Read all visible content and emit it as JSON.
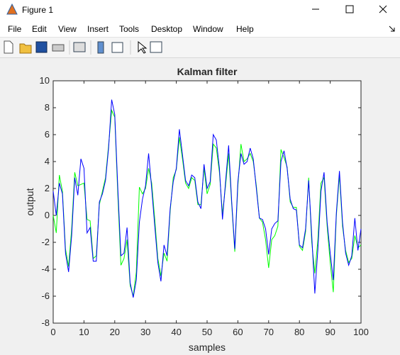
{
  "window": {
    "title": "Figure 1",
    "menu": [
      "File",
      "Edit",
      "View",
      "Insert",
      "Tools",
      "Desktop",
      "Window",
      "Help"
    ]
  },
  "chart_data": {
    "type": "line",
    "title": "Kalman filter",
    "xlabel": "samples",
    "ylabel": "output",
    "x": [
      0,
      1,
      2,
      3,
      4,
      5,
      6,
      7,
      8,
      9,
      10,
      11,
      12,
      13,
      14,
      15,
      16,
      17,
      18,
      19,
      20,
      21,
      22,
      23,
      24,
      25,
      26,
      27,
      28,
      29,
      30,
      31,
      32,
      33,
      34,
      35,
      36,
      37,
      38,
      39,
      40,
      41,
      42,
      43,
      44,
      45,
      46,
      47,
      48,
      49,
      50,
      51,
      52,
      53,
      54,
      55,
      56,
      57,
      58,
      59,
      60,
      61,
      62,
      63,
      64,
      65,
      66,
      67,
      68,
      69,
      70,
      71,
      72,
      73,
      74,
      75,
      76,
      77,
      78,
      79,
      80,
      81,
      82,
      83,
      84,
      85,
      86,
      87,
      88,
      89,
      90,
      91,
      92,
      93,
      94,
      95,
      96,
      97,
      98,
      99,
      100
    ],
    "xlim": [
      0,
      100
    ],
    "ylim": [
      -8,
      10
    ],
    "xticks": [
      0,
      10,
      20,
      30,
      40,
      50,
      60,
      70,
      80,
      90,
      100
    ],
    "yticks": [
      -8,
      -6,
      -4,
      -2,
      0,
      2,
      4,
      6,
      8,
      10
    ],
    "series": [
      {
        "color": "#00ff00",
        "values": [
          0.0,
          -1.3,
          3.0,
          1.8,
          -2.5,
          -3.8,
          -1.0,
          3.2,
          2.2,
          2.3,
          2.4,
          -0.3,
          -0.4,
          -3.2,
          -3.0,
          0.8,
          1.8,
          2.8,
          5.2,
          7.8,
          7.3,
          1.5,
          -3.7,
          -3.2,
          -1.8,
          -5.2,
          -6.0,
          -4.2,
          2.1,
          1.6,
          2.0,
          3.5,
          2.4,
          -0.3,
          -3.2,
          -4.5,
          -2.8,
          -3.4,
          0.3,
          2.8,
          3.4,
          5.8,
          4.2,
          2.4,
          2.0,
          2.8,
          2.6,
          0.8,
          0.8,
          3.5,
          1.6,
          2.3,
          5.3,
          5.0,
          3.2,
          0.1,
          2.2,
          4.6,
          0.8,
          -2.7,
          2.2,
          5.3,
          4.0,
          4.2,
          4.6,
          4.0,
          2.2,
          -0.2,
          -0.5,
          -1.8,
          -3.9,
          -1.8,
          -1.5,
          -0.8,
          4.9,
          4.3,
          3.6,
          1.0,
          0.6,
          0.6,
          -2.3,
          -2.6,
          -1.2,
          2.8,
          -2.0,
          -4.3,
          -1.8,
          2.4,
          2.8,
          -0.8,
          -3.5,
          -5.7,
          0.0,
          3.0,
          -0.8,
          -2.6,
          -3.5,
          -3.2,
          -1.5,
          -2.4,
          -2.2
        ]
      },
      {
        "color": "#0000ff",
        "values": [
          1.8,
          0.0,
          2.4,
          1.6,
          -2.8,
          -4.2,
          -1.5,
          2.8,
          1.5,
          4.2,
          3.5,
          -1.3,
          -0.9,
          -3.4,
          -3.4,
          1.0,
          1.6,
          2.6,
          5.0,
          8.6,
          7.5,
          2.0,
          -3.0,
          -2.8,
          -0.9,
          -5.0,
          -6.1,
          -4.8,
          -0.5,
          1.2,
          2.2,
          4.6,
          2.0,
          -0.8,
          -3.5,
          -4.9,
          -2.2,
          -3.0,
          0.5,
          2.5,
          3.5,
          6.4,
          4.5,
          2.6,
          2.2,
          3.0,
          2.8,
          1.0,
          0.5,
          3.8,
          2.0,
          2.5,
          6.0,
          5.6,
          3.5,
          -0.3,
          2.5,
          5.2,
          1.0,
          -2.5,
          2.5,
          4.6,
          3.8,
          4.0,
          5.0,
          4.2,
          2.0,
          -0.2,
          -0.3,
          -1.0,
          -2.9,
          -1.0,
          -0.6,
          -0.4,
          4.0,
          4.8,
          3.5,
          1.2,
          0.5,
          0.4,
          -2.2,
          -2.4,
          -1.0,
          2.6,
          -1.5,
          -5.8,
          -2.5,
          1.8,
          3.2,
          -0.5,
          -2.8,
          -4.8,
          0.2,
          3.3,
          -0.5,
          -2.8,
          -3.7,
          -3.0,
          -0.2,
          -2.6,
          -1.0
        ]
      }
    ]
  }
}
